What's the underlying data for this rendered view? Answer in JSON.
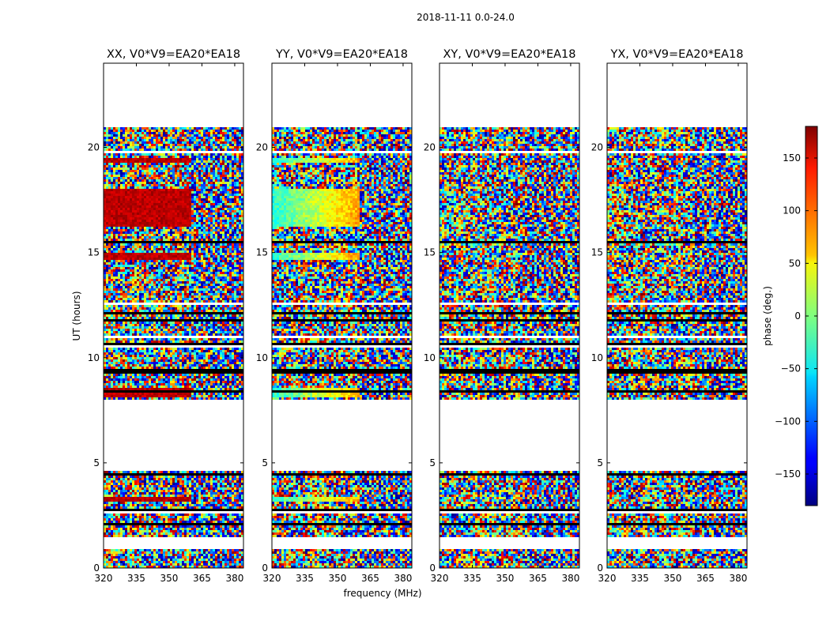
{
  "chart_data": {
    "type": "heatmap",
    "suptitle": "2018-11-11 0.0-24.0",
    "xlabel": "frequency (MHz)",
    "ylabel": "UT (hours)",
    "xlim": [
      320,
      384
    ],
    "ylim": [
      0,
      24
    ],
    "xticks": [
      320,
      335,
      350,
      365,
      380
    ],
    "yticks": [
      0,
      5,
      10,
      15,
      20
    ],
    "colorbar": {
      "label": "phase (deg.)",
      "range": [
        -180,
        180
      ],
      "ticks": [
        150,
        100,
        50,
        0,
        -50,
        -100,
        -150
      ],
      "tick_labels": [
        "150",
        "100",
        "50",
        "0",
        "−50",
        "−100",
        "−150"
      ],
      "colormap": "jet"
    },
    "data_gaps_ut_hours": [
      [
        0.9,
        1.45
      ],
      [
        4.65,
        8.05
      ],
      [
        21.0,
        24.0
      ]
    ],
    "panels": [
      {
        "title": "XX, V0*V9=EA20*EA18",
        "pol": "XX"
      },
      {
        "title": "YY, V0*V9=EA20*EA18",
        "pol": "YY"
      },
      {
        "title": "XY, V0*V9=EA20*EA18",
        "pol": "XY"
      },
      {
        "title": "YX, V0*V9=EA20*EA18",
        "pol": "YX"
      }
    ]
  }
}
